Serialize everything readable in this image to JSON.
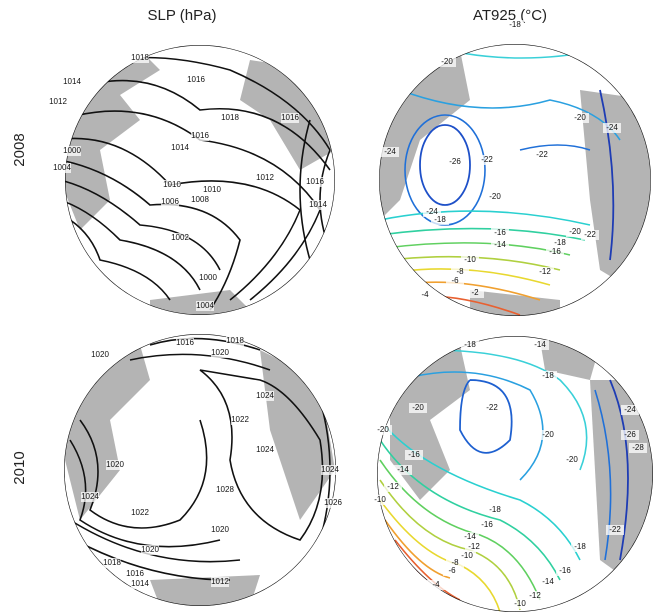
{
  "columns": [
    "SLP (hPa)",
    "AT925 (°C)"
  ],
  "rows": [
    "2008",
    "2010"
  ],
  "panels": [
    {
      "labels": [
        "1018",
        "1016",
        "1018",
        "1016",
        "1014",
        "1012",
        "1016",
        "1014",
        "1012",
        "1010",
        "1010",
        "1008",
        "1006",
        "1004",
        "1000",
        "1002",
        "1000",
        "1004",
        "1014",
        "1016"
      ]
    },
    {
      "labels": [
        "-18",
        "-20",
        "-20",
        "-22",
        "-24",
        "-26",
        "-22",
        "-20",
        "-24",
        "-18",
        "-16",
        "-14",
        "-20",
        "-18",
        "-16",
        "-12",
        "-10",
        "-8",
        "-6",
        "-4",
        "-2",
        "-22",
        "-24"
      ]
    },
    {
      "labels": [
        "1016",
        "1018",
        "1020",
        "1020",
        "1024",
        "1022",
        "1024",
        "1028",
        "1026",
        "1024",
        "1020",
        "1024",
        "1022",
        "1020",
        "1018",
        "1016",
        "1014",
        "1012",
        "1020"
      ]
    },
    {
      "labels": [
        "-18",
        "-14",
        "-20",
        "-22",
        "-18",
        "-20",
        "-20",
        "-24",
        "-26",
        "-28",
        "-22",
        "-20",
        "-16",
        "-14",
        "-12",
        "-10",
        "-18",
        "-16",
        "-14",
        "-12",
        "-10",
        "-8",
        "-6",
        "-4",
        "-18",
        "-16",
        "-14",
        "-12",
        "-10"
      ]
    }
  ]
}
